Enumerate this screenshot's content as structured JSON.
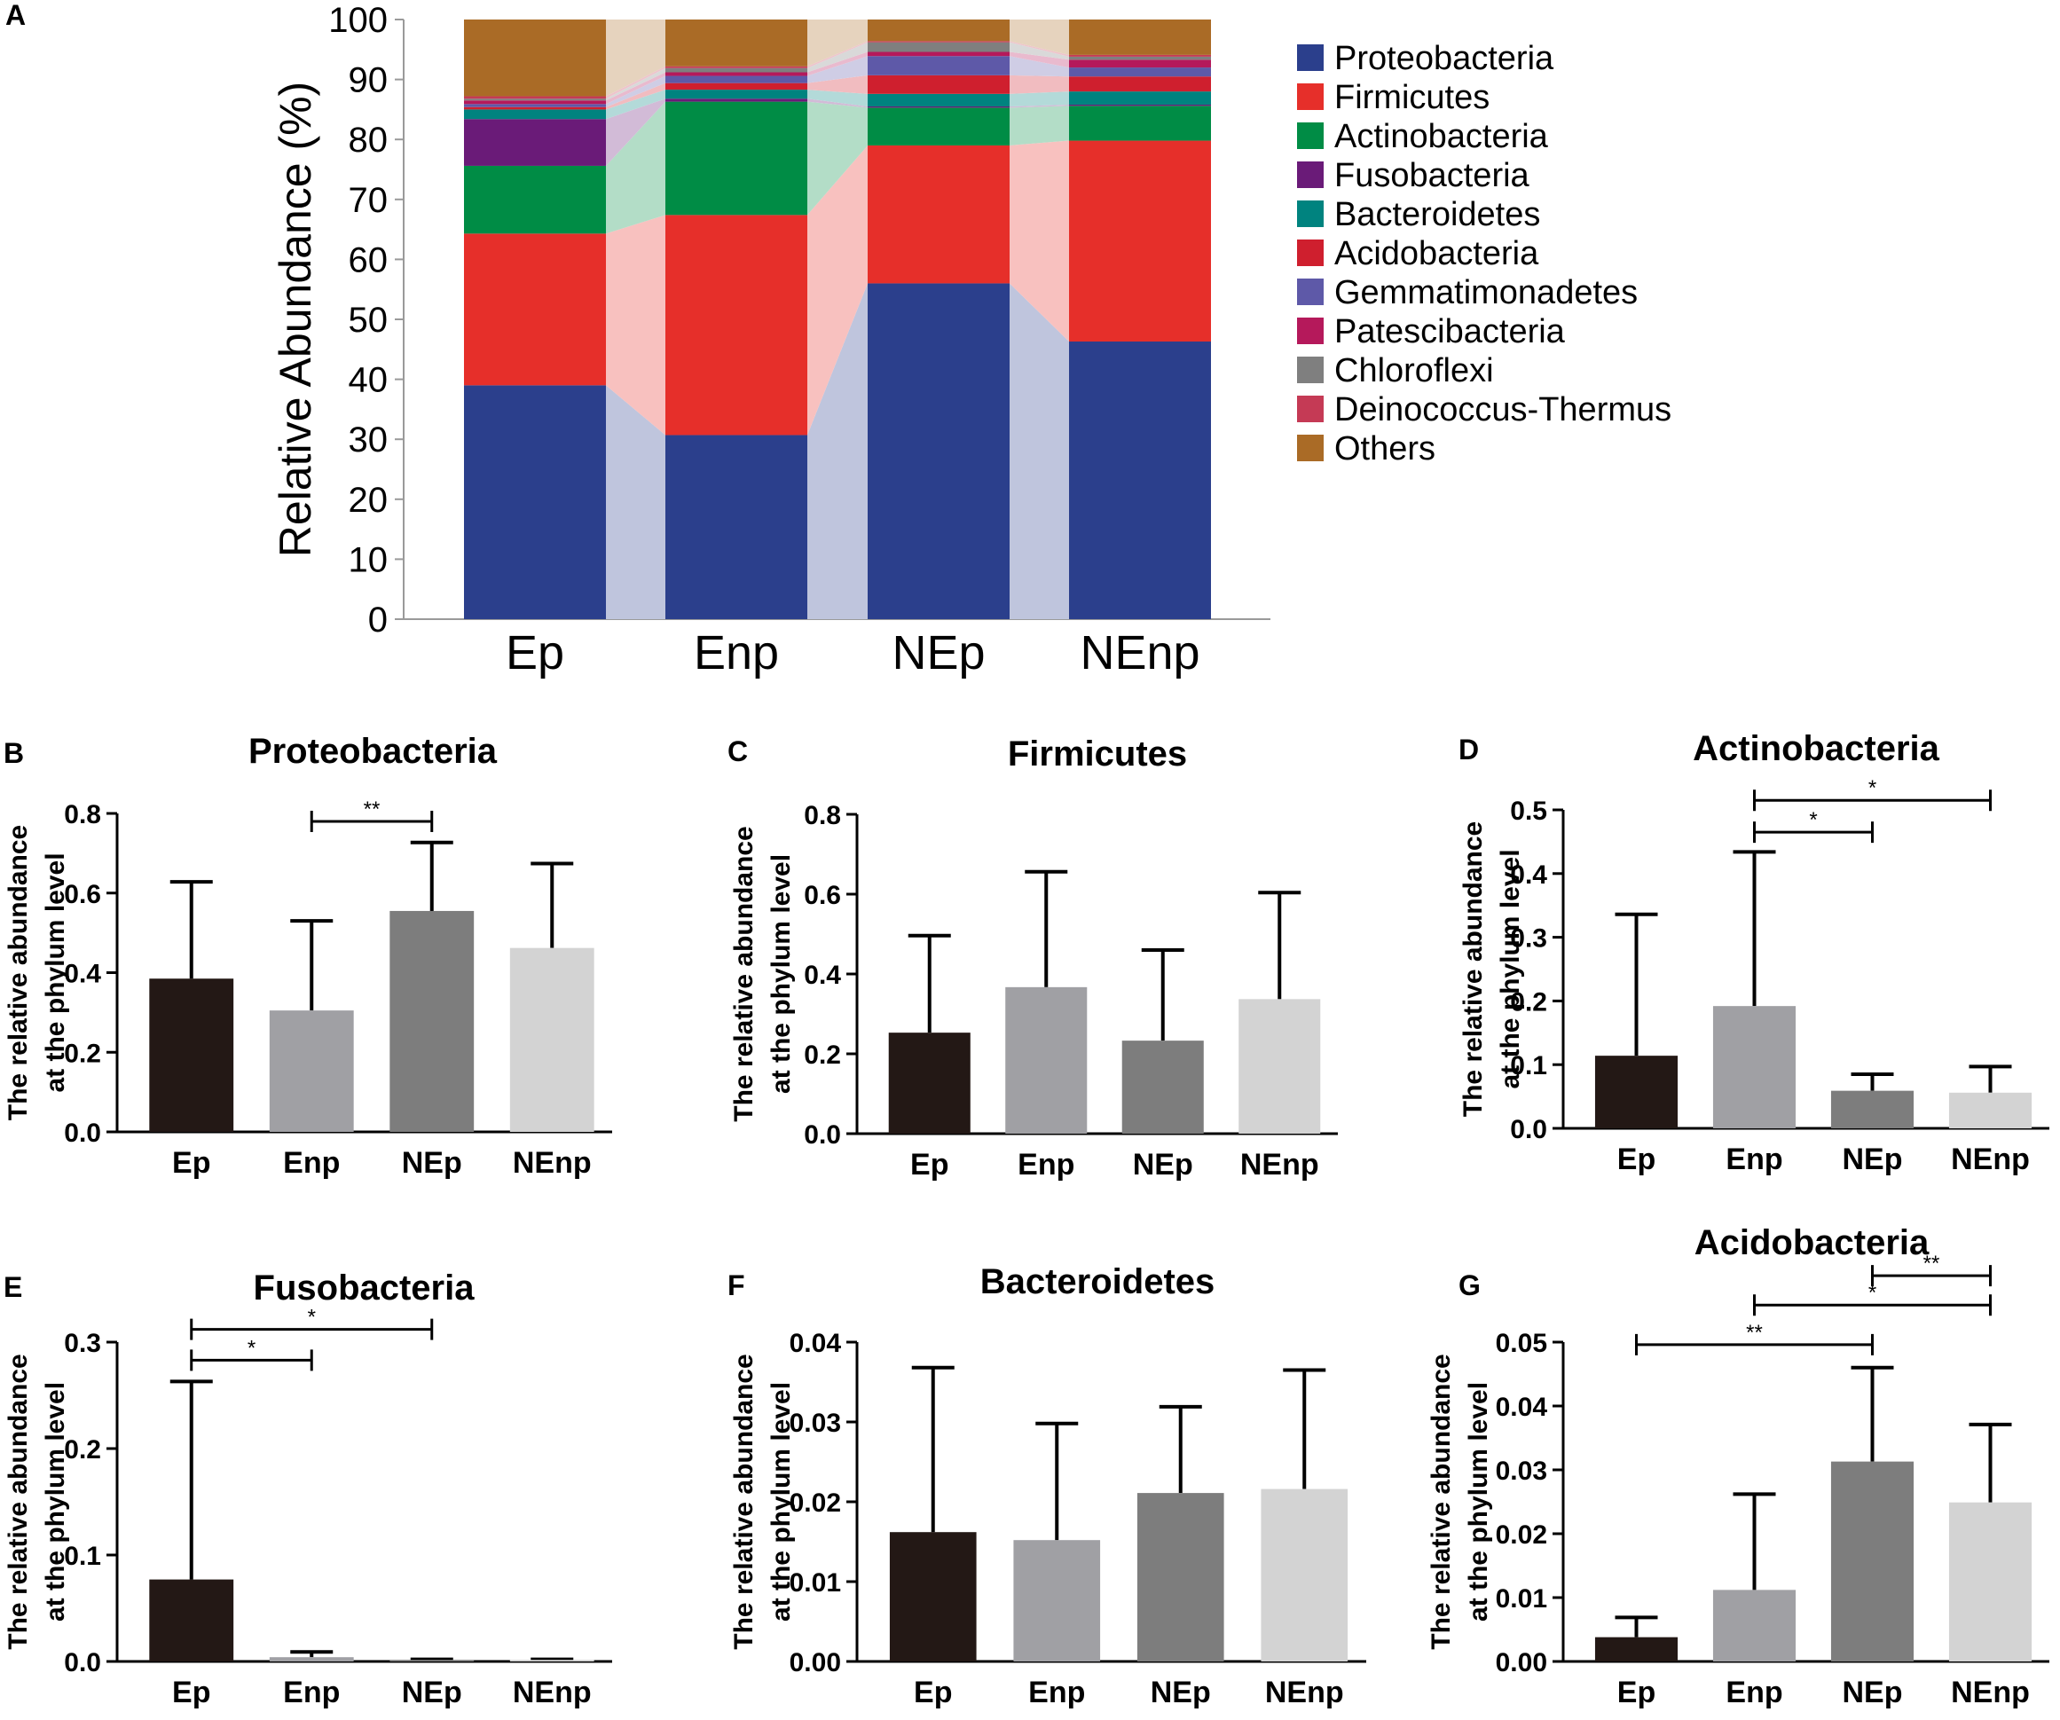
{
  "chart_data": [
    {
      "panel_label": "A",
      "type": "bar",
      "stacked": true,
      "title": "",
      "xlabel": "",
      "ylabel": "Relative Abundance (%)",
      "ylim": [
        0,
        100
      ],
      "yticks": [
        0,
        10,
        20,
        30,
        40,
        50,
        60,
        70,
        80,
        90,
        100
      ],
      "categories": [
        "Ep",
        "Enp",
        "NEp",
        "NEnp"
      ],
      "legend_position": "right",
      "series": [
        {
          "name": "Proteobacteria",
          "color": "#2b3f8c",
          "values": [
            39.0,
            30.7,
            56.0,
            46.3
          ]
        },
        {
          "name": "Firmicutes",
          "color": "#e62f2a",
          "values": [
            25.3,
            36.7,
            23.0,
            33.5
          ]
        },
        {
          "name": "Actinobacteria",
          "color": "#008c45",
          "values": [
            11.3,
            18.9,
            6.3,
            5.8
          ]
        },
        {
          "name": "Fusobacteria",
          "color": "#6a1b78",
          "values": [
            7.8,
            0.5,
            0.2,
            0.2
          ]
        },
        {
          "name": "Bacteroidetes",
          "color": "#00837f",
          "values": [
            1.6,
            1.5,
            2.1,
            2.2
          ]
        },
        {
          "name": "Acidobacteria",
          "color": "#cf1f2e",
          "values": [
            0.4,
            1.1,
            3.1,
            2.5
          ]
        },
        {
          "name": "Gemmatimonadetes",
          "color": "#5e59a8",
          "values": [
            0.5,
            1.2,
            3.2,
            1.5
          ]
        },
        {
          "name": "Patescibacteria",
          "color": "#b5195b",
          "values": [
            0.6,
            0.6,
            0.7,
            1.3
          ]
        },
        {
          "name": "Chloroflexi",
          "color": "#7f7f7f",
          "values": [
            0.3,
            0.7,
            1.6,
            0.5
          ]
        },
        {
          "name": "Deinococcus-Thermus",
          "color": "#c53a55",
          "values": [
            0.4,
            0.3,
            0.2,
            0.3
          ]
        },
        {
          "name": "Others",
          "color": "#aa6b26",
          "values": [
            12.8,
            7.8,
            3.6,
            5.9
          ]
        }
      ]
    },
    {
      "panel_label": "B",
      "type": "bar",
      "title": "Proteobacteria",
      "ylabel": [
        "The relative abundance",
        "at the phylum level"
      ],
      "categories": [
        "Ep",
        "Enp",
        "NEp",
        "NEnp"
      ],
      "values": [
        0.385,
        0.305,
        0.555,
        0.462
      ],
      "errors": [
        0.243,
        0.225,
        0.172,
        0.212
      ],
      "ylim": [
        0,
        0.8
      ],
      "yticks": [
        "0.0",
        "0.2",
        "0.4",
        "0.6",
        "0.8"
      ],
      "bar_colors": [
        "#231815",
        "#a0a0a4",
        "#7d7d7d",
        "#d3d3d3"
      ],
      "significance": [
        {
          "from": 1,
          "to": 2,
          "y": 0.78,
          "label": "**"
        }
      ]
    },
    {
      "panel_label": "C",
      "type": "bar",
      "title": "Firmicutes",
      "ylabel": [
        "The relative abundance",
        "at the phylum level"
      ],
      "categories": [
        "Ep",
        "Enp",
        "NEp",
        "NEnp"
      ],
      "values": [
        0.253,
        0.367,
        0.233,
        0.337
      ],
      "errors": [
        0.243,
        0.289,
        0.227,
        0.267
      ],
      "ylim": [
        0,
        0.8
      ],
      "yticks": [
        "0.0",
        "0.2",
        "0.4",
        "0.6",
        "0.8"
      ],
      "bar_colors": [
        "#231815",
        "#a0a0a4",
        "#7d7d7d",
        "#d3d3d3"
      ],
      "significance": []
    },
    {
      "panel_label": "D",
      "type": "bar",
      "title": "Actinobacteria",
      "ylabel": [
        "The relative abundance",
        "at the phylum level"
      ],
      "categories": [
        "Ep",
        "Enp",
        "NEp",
        "NEnp"
      ],
      "values": [
        0.114,
        0.192,
        0.059,
        0.056
      ],
      "errors": [
        0.222,
        0.242,
        0.026,
        0.041
      ],
      "ylim": [
        0,
        0.5
      ],
      "yticks": [
        "0.0",
        "0.1",
        "0.2",
        "0.3",
        "0.4",
        "0.5"
      ],
      "bar_colors": [
        "#231815",
        "#a0a0a4",
        "#7d7d7d",
        "#d3d3d3"
      ],
      "significance": [
        {
          "from": 1,
          "to": 2,
          "y": 0.465,
          "label": "*"
        },
        {
          "from": 1,
          "to": 3,
          "y": 0.515,
          "label": "*"
        }
      ]
    },
    {
      "panel_label": "E",
      "type": "bar",
      "title": "Fusobacteria",
      "ylabel": [
        "The relative abundance",
        "at the phylum level"
      ],
      "categories": [
        "Ep",
        "Enp",
        "NEp",
        "NEnp"
      ],
      "values": [
        0.077,
        0.004,
        0.0015,
        0.0015
      ],
      "errors": [
        0.186,
        0.005,
        0.0005,
        0.0005
      ],
      "ylim": [
        0,
        0.3
      ],
      "yticks": [
        "0.0",
        "0.1",
        "0.2",
        "0.3"
      ],
      "bar_colors": [
        "#231815",
        "#a0a0a4",
        "#7d7d7d",
        "#d3d3d3"
      ],
      "significance": [
        {
          "from": 0,
          "to": 1,
          "y": 0.283,
          "label": "*"
        },
        {
          "from": 0,
          "to": 2,
          "y": 0.312,
          "label": "*"
        }
      ]
    },
    {
      "panel_label": "F",
      "type": "bar",
      "title": "Bacteroidetes",
      "ylabel": [
        "The relative abundance",
        "at the phylum level"
      ],
      "categories": [
        "Ep",
        "Enp",
        "NEp",
        "NEnp"
      ],
      "values": [
        0.0162,
        0.0152,
        0.0211,
        0.0216
      ],
      "errors": [
        0.0206,
        0.0146,
        0.0108,
        0.0149
      ],
      "ylim": [
        0,
        0.04
      ],
      "yticks": [
        "0.00",
        "0.01",
        "0.02",
        "0.03",
        "0.04"
      ],
      "bar_colors": [
        "#231815",
        "#a0a0a4",
        "#7d7d7d",
        "#d3d3d3"
      ],
      "significance": []
    },
    {
      "panel_label": "G",
      "type": "bar",
      "title": "Acidobacteria",
      "ylabel": [
        "The relative abundance",
        "at the phylum level"
      ],
      "categories": [
        "Ep",
        "Enp",
        "NEp",
        "NEnp"
      ],
      "values": [
        0.0038,
        0.0112,
        0.0313,
        0.0249
      ],
      "errors": [
        0.0031,
        0.015,
        0.0147,
        0.0122
      ],
      "ylim": [
        0,
        0.05
      ],
      "yticks": [
        "0.00",
        "0.01",
        "0.02",
        "0.03",
        "0.04",
        "0.05"
      ],
      "bar_colors": [
        "#231815",
        "#a0a0a4",
        "#7d7d7d",
        "#d3d3d3"
      ],
      "significance": [
        {
          "from": 0,
          "to": 2,
          "y": 0.0496,
          "label": "**"
        },
        {
          "from": 1,
          "to": 3,
          "y": 0.0558,
          "label": "*"
        },
        {
          "from": 2,
          "to": 3,
          "y": 0.0604,
          "label": "**"
        }
      ]
    }
  ]
}
